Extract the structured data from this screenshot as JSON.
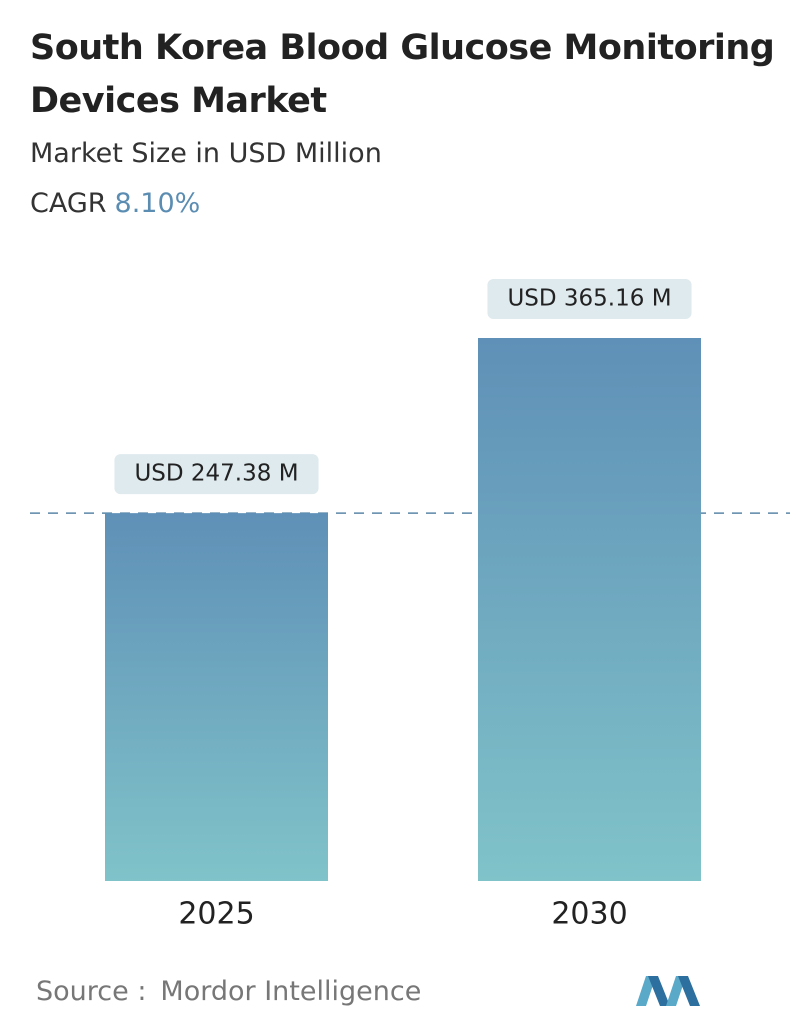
{
  "chart_data": {
    "type": "bar",
    "title": "South Korea Blood Glucose Monitoring Devices Market",
    "subtitle": "Market Size in USD Million",
    "cagr_label": "CAGR",
    "cagr_value": "8.10%",
    "categories": [
      "2025",
      "2030"
    ],
    "values": [
      247.38,
      365.16
    ],
    "value_labels": [
      "USD 247.38 M",
      "USD 365.16 M"
    ],
    "color_top": "#5f90b7",
    "color_bottom": "#80c3c9",
    "source_label": "Source :",
    "source": "Mordor Intelligence"
  }
}
